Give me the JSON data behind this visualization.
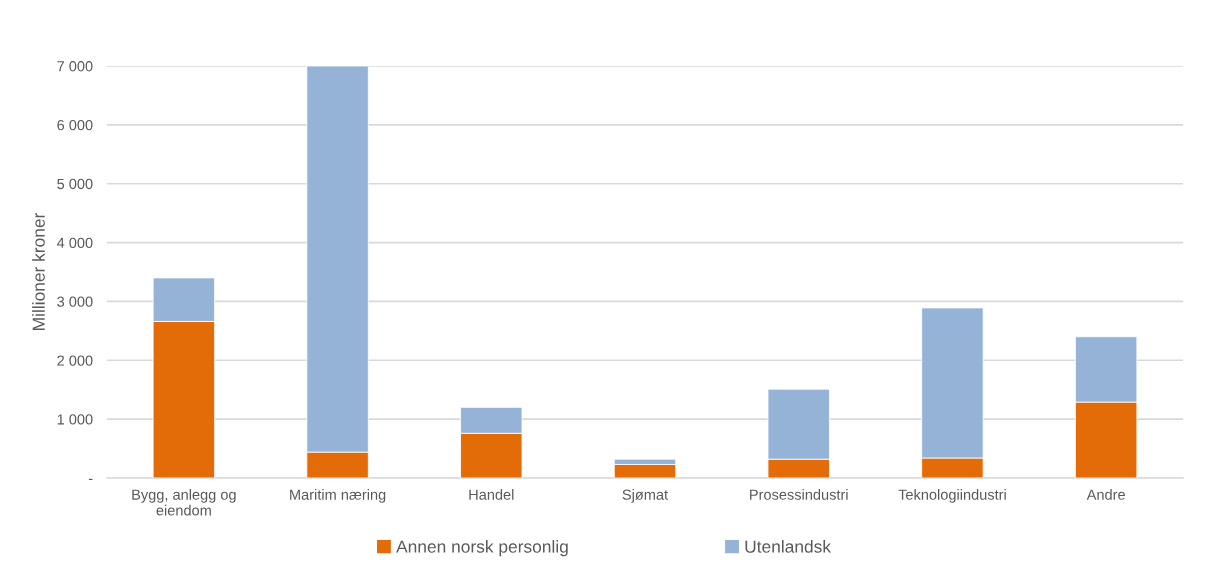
{
  "chart_data": {
    "type": "bar",
    "stacked": true,
    "ylabel": "Millioner kroner",
    "categories": [
      "Bygg, anlegg og eiendom",
      "Maritim næring",
      "Handel",
      "Sjømat",
      "Prosessindustri",
      "Teknologiindustri",
      "Andre"
    ],
    "series": [
      {
        "name": "Annen norsk personlig",
        "color": "#e36c09",
        "values": [
          2660,
          440,
          760,
          230,
          320,
          340,
          1290
        ]
      },
      {
        "name": "Utenlandsk",
        "color": "#95b3d7",
        "values": [
          740,
          6560,
          440,
          90,
          1190,
          2550,
          1110
        ]
      }
    ],
    "ylim": [
      0,
      7000
    ],
    "yticks": [
      {
        "value": 0,
        "label": "-"
      },
      {
        "value": 1000,
        "label": "1 000"
      },
      {
        "value": 2000,
        "label": "2 000"
      },
      {
        "value": 3000,
        "label": "3 000"
      },
      {
        "value": 4000,
        "label": "4 000"
      },
      {
        "value": 5000,
        "label": "5 000"
      },
      {
        "value": 6000,
        "label": "6 000"
      },
      {
        "value": 7000,
        "label": "7 000"
      }
    ],
    "grid": "y",
    "legend": "bottom"
  }
}
